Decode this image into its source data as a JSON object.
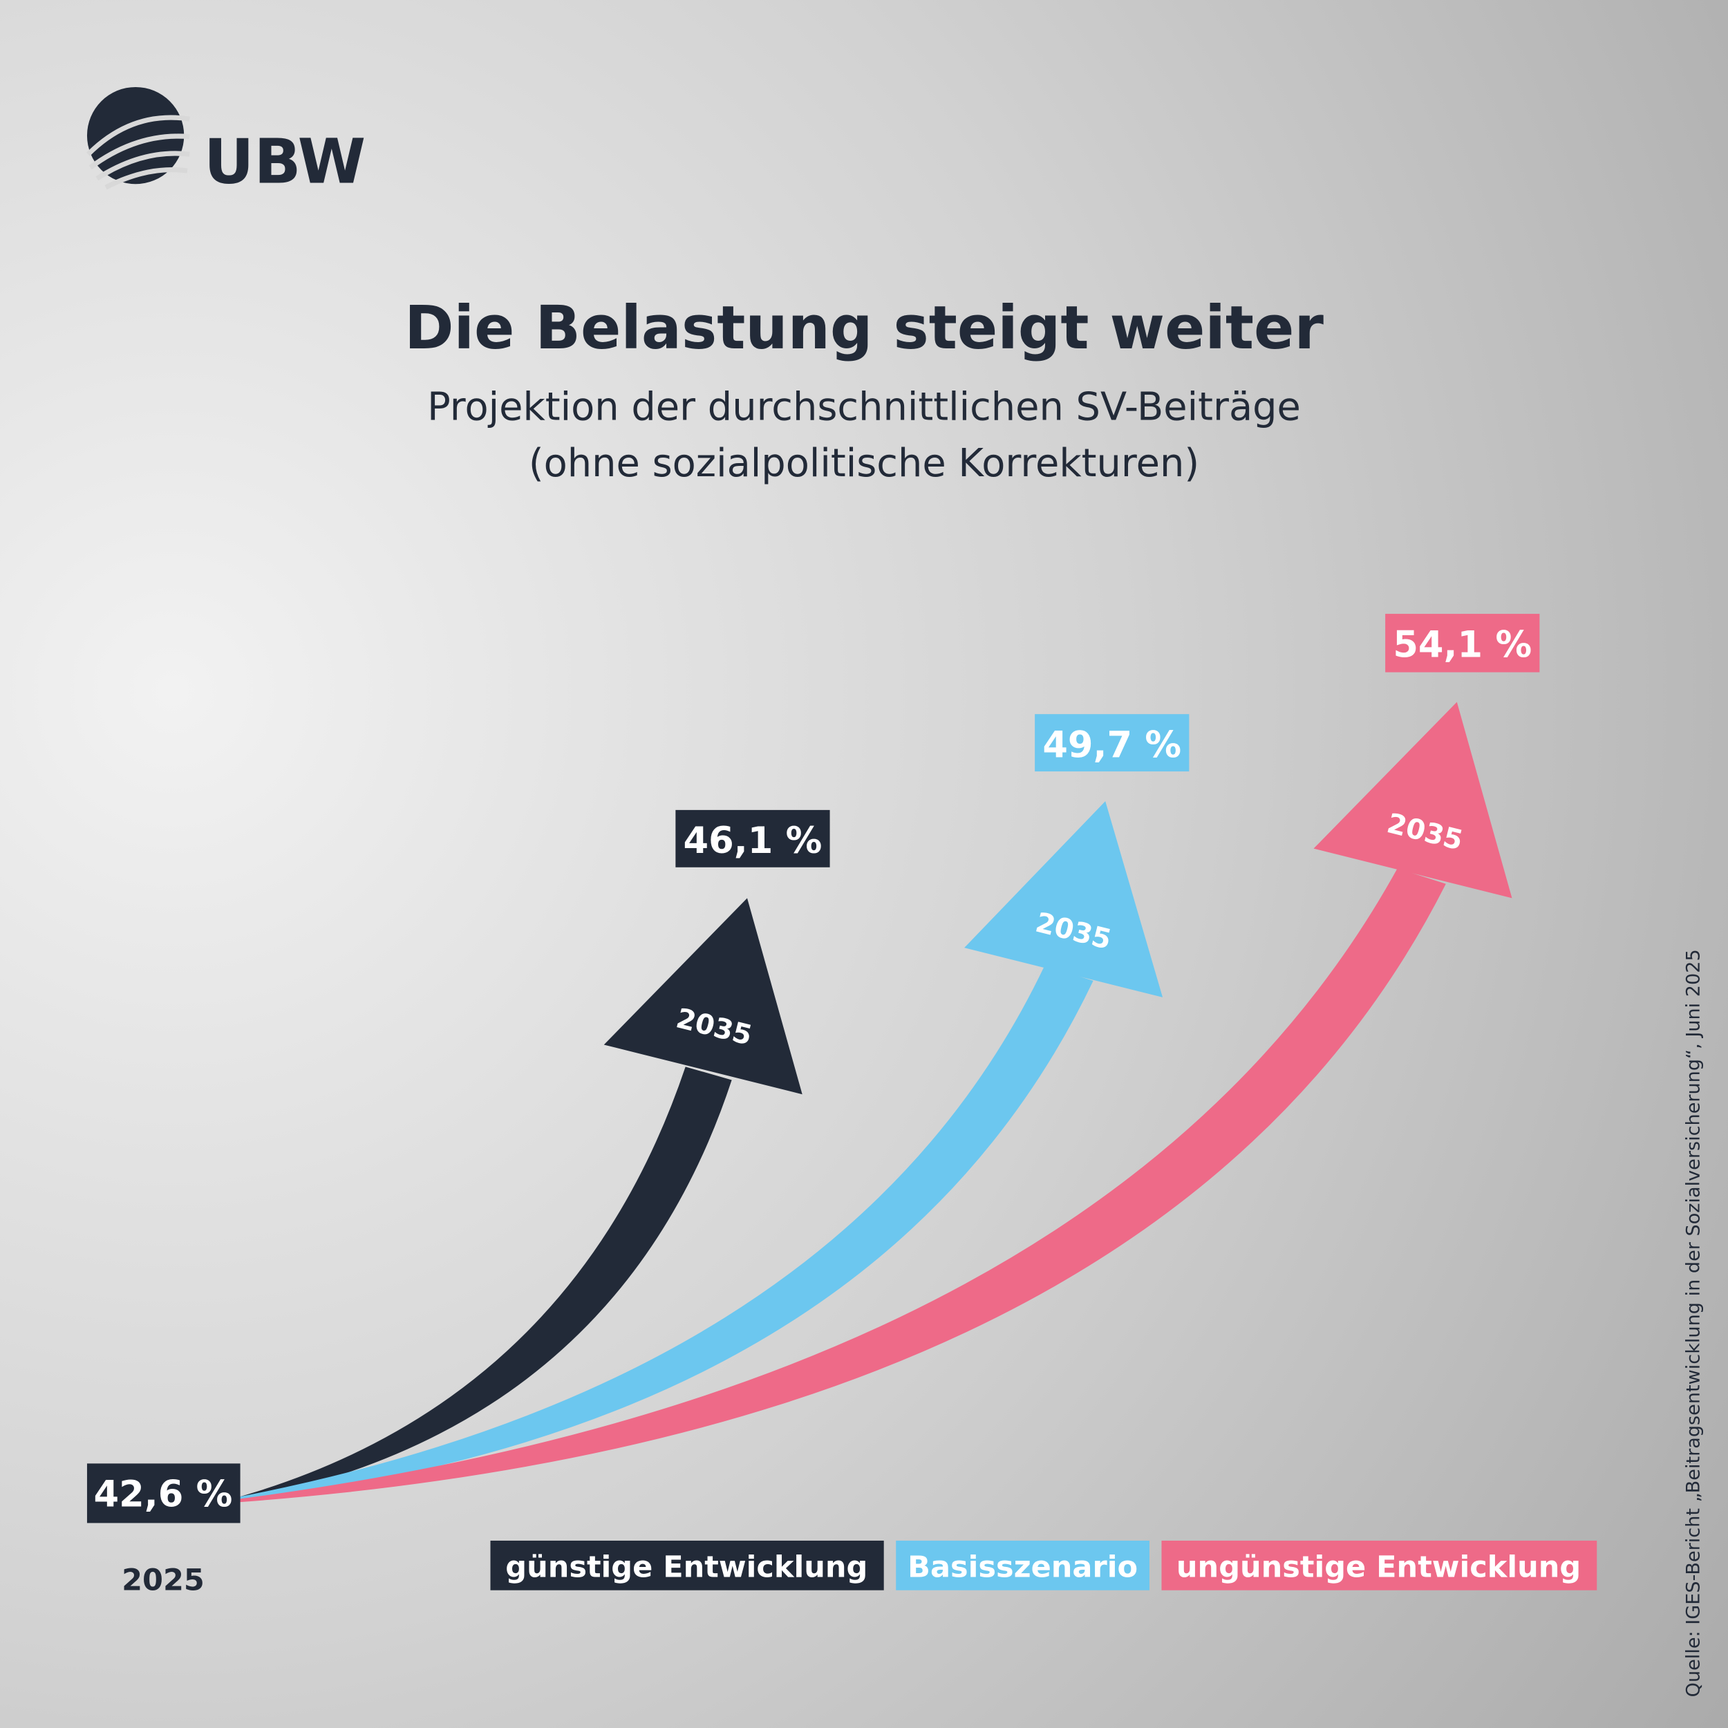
{
  "logo": {
    "text": "UBW"
  },
  "title": "Die Belastung steigt weiter",
  "subtitle_line1": "Projektion der durchschnittlichen SV-Beiträge",
  "subtitle_line2": "(ohne sozialpolitische Korrekturen)",
  "source": "Quelle: IGES-Bericht „Beitragsentwicklung in der Sozialversicherung“, Juni 2025",
  "colors": {
    "dark": "#222a38",
    "blue": "#6cc7ef",
    "pink": "#ee6a88"
  },
  "chart_data": {
    "type": "line",
    "title": "Die Belastung steigt weiter",
    "categories": [
      "2025",
      "2035"
    ],
    "start": {
      "year": "2025",
      "value": 42.6,
      "label": "42,6 %"
    },
    "series": [
      {
        "name": "günstige Entwicklung",
        "values": [
          42.6,
          46.1
        ],
        "end_label": "46,1 %",
        "year_label": "2035",
        "color": "#222a38"
      },
      {
        "name": "Basisszenario",
        "values": [
          42.6,
          49.7
        ],
        "end_label": "49,7 %",
        "year_label": "2035",
        "color": "#6cc7ef"
      },
      {
        "name": "ungünstige Entwicklung",
        "values": [
          42.6,
          54.1
        ],
        "end_label": "54,1 %",
        "year_label": "2035",
        "color": "#ee6a88"
      }
    ],
    "legend": "bottom"
  }
}
